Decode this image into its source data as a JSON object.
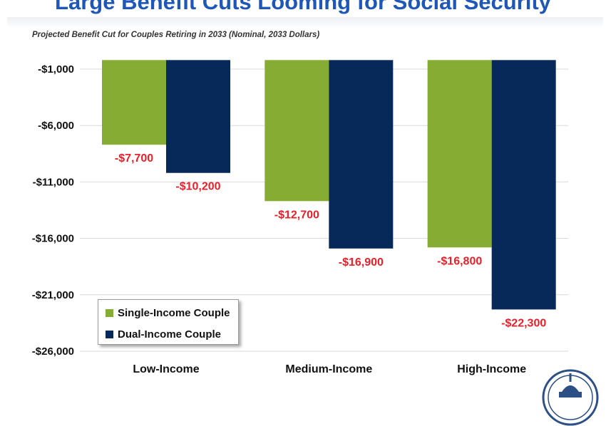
{
  "page": {
    "title": "Large Benefit Cuts Looming for Social Security"
  },
  "chart_data": {
    "type": "bar",
    "title": "",
    "subtitle": "Projected Benefit Cut for Couples Retiring in 2033 (Nominal, 2033 Dollars)",
    "xlabel": "",
    "ylabel": "",
    "categories": [
      "Low-Income",
      "Medium-Income",
      "High-Income"
    ],
    "series": [
      {
        "name": "Single-Income Couple",
        "values": [
          -7700,
          -12700,
          -16800
        ],
        "labels": [
          "-$7,700",
          "-$12,700",
          "-$16,800"
        ],
        "color": "#86ac33"
      },
      {
        "name": "Dual-Income Couple",
        "values": [
          -10200,
          -16900,
          -22300
        ],
        "labels": [
          "-$10,200",
          "-$16,900",
          "-$22,300"
        ],
        "color": "#06295a"
      }
    ],
    "yticks": [
      -1000,
      -6000,
      -11000,
      -16000,
      -21000,
      -26000
    ],
    "ytick_labels": [
      "-$1,000",
      "-$6,000",
      "-$11,000",
      "-$16,000",
      "-$21,000",
      "-$26,000"
    ],
    "ylim": [
      -26000,
      -1000
    ],
    "baseline": -200,
    "grid": true,
    "legend_position": "bottom-left",
    "data_label_color": "#e8202a"
  }
}
